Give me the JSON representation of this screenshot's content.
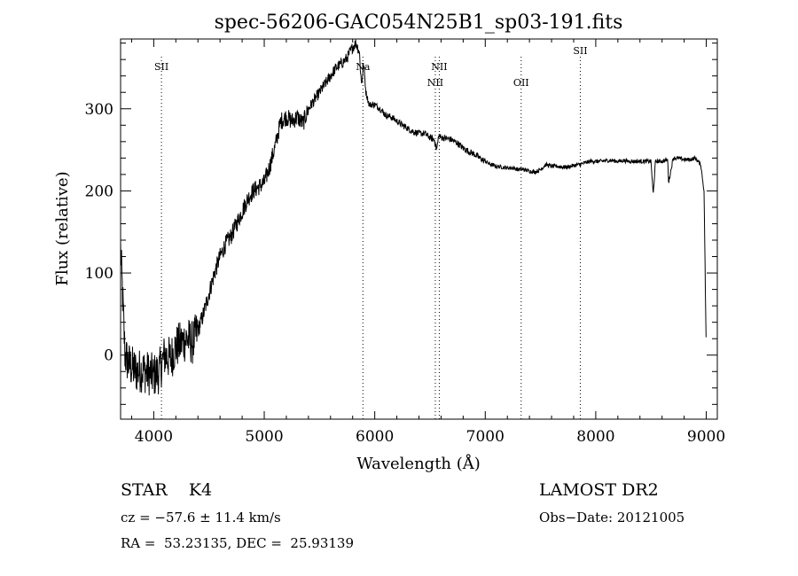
{
  "chart_data": {
    "type": "line",
    "title": "spec-56206-GAC054N25B1_sp03-191.fits",
    "xlabel": "Wavelength (Å)",
    "ylabel": "Flux (relative)",
    "xlim": [
      3700,
      9100
    ],
    "ylim": [
      -78,
      385
    ],
    "xticks": [
      4000,
      5000,
      6000,
      7000,
      8000,
      9000
    ],
    "yticks": [
      0,
      100,
      200,
      300
    ],
    "grid": false,
    "lines": [
      {
        "label": "SII",
        "x": 4070,
        "row": 1
      },
      {
        "label": "Na",
        "x": 5893,
        "row": 1
      },
      {
        "label": "NII",
        "x": 6548,
        "row": 2
      },
      {
        "label": "NII",
        "x": 6584,
        "row": 1
      },
      {
        "label": "OII",
        "x": 7325,
        "row": 2
      },
      {
        "label": "SII",
        "x": 7860,
        "row": 0
      }
    ],
    "series": [
      {
        "x": [
          3700,
          3740,
          3770,
          3800,
          3850,
          3900,
          3950,
          4000,
          4050,
          4100,
          4150,
          4200,
          4250,
          4300,
          4350,
          4400,
          4450,
          4500,
          4550,
          4600,
          4650,
          4700,
          4750,
          4800,
          4850,
          4900,
          4950,
          5000,
          5050,
          5100,
          5150,
          5200,
          5250,
          5300,
          5350,
          5400,
          5450,
          5500,
          5550,
          5600,
          5650,
          5700,
          5750,
          5800,
          5830,
          5860,
          5880,
          5900,
          5920,
          5950,
          6000,
          6050,
          6100,
          6150,
          6200,
          6250,
          6300,
          6350,
          6400,
          6450,
          6500,
          6540,
          6560,
          6580,
          6600,
          6650,
          6700,
          6750,
          6800,
          6850,
          6900,
          6950,
          7000,
          7050,
          7100,
          7150,
          7200,
          7250,
          7300,
          7350,
          7400,
          7450,
          7500,
          7550,
          7600,
          7650,
          7700,
          7750,
          7800,
          7850,
          7900,
          7950,
          8000,
          8050,
          8100,
          8150,
          8200,
          8250,
          8300,
          8350,
          8400,
          8450,
          8500,
          8520,
          8540,
          8560,
          8600,
          8650,
          8660,
          8700,
          8750,
          8800,
          8850,
          8900,
          8950,
          8980,
          9000
        ],
        "y": [
          130,
          0,
          -10,
          -15,
          -20,
          -18,
          -22,
          -25,
          -20,
          0,
          -5,
          10,
          15,
          20,
          15,
          30,
          50,
          75,
          100,
          120,
          135,
          145,
          160,
          175,
          190,
          200,
          205,
          210,
          230,
          255,
          285,
          290,
          285,
          290,
          282,
          300,
          310,
          320,
          330,
          340,
          350,
          355,
          362,
          375,
          380,
          370,
          330,
          355,
          320,
          305,
          305,
          300,
          292,
          290,
          285,
          280,
          276,
          272,
          270,
          270,
          265,
          262,
          250,
          268,
          265,
          264,
          262,
          258,
          252,
          248,
          245,
          240,
          236,
          232,
          230,
          229,
          228,
          228,
          226,
          226,
          224,
          223,
          226,
          232,
          230,
          230,
          229,
          229,
          231,
          232,
          234,
          236,
          236,
          236,
          237,
          237,
          236,
          237,
          236,
          236,
          236,
          236,
          236,
          195,
          236,
          236,
          236,
          238,
          210,
          240,
          240,
          238,
          238,
          240,
          232,
          200,
          0
        ]
      }
    ]
  },
  "info": {
    "class": "STAR    K4",
    "survey": "LAMOST DR2",
    "cz": "cz = −57.6 ± 11.4 km/s",
    "obs_date": "Obs−Date: 20121005",
    "coords": "RA =  53.23135, DEC =  25.93139"
  }
}
